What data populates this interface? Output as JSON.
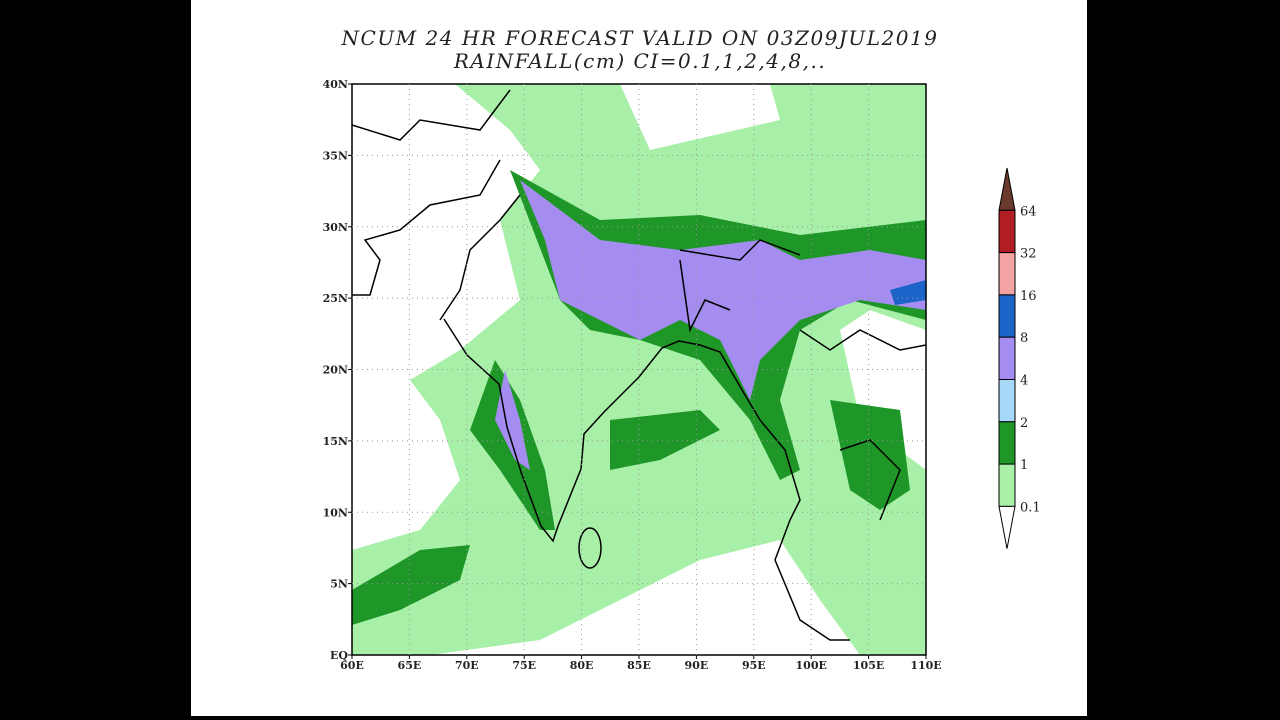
{
  "header": {
    "title": "NCUM 24 HR FORECAST VALID ON 03Z09JUL2019",
    "subtitle": "RAINFALL(cm) CI=0.1,1,2,4,8,.."
  },
  "map": {
    "lat_labels": [
      "40N",
      "35N",
      "30N",
      "25N",
      "20N",
      "15N",
      "10N",
      "5N",
      "EQ"
    ],
    "lon_labels": [
      "60E",
      "65E",
      "70E",
      "75E",
      "80E",
      "85E",
      "90E",
      "95E",
      "100E",
      "105E",
      "110E"
    ]
  },
  "colorbar": {
    "levels": [
      64,
      32,
      16,
      8,
      4,
      2,
      1,
      0.1
    ],
    "colors": [
      "#6b3a2e",
      "#b01e24",
      "#f4a3a3",
      "#1c64c8",
      "#a48cf0",
      "#a8d8f8",
      "#1e9628",
      "#a8f0a8",
      "#ffffff"
    ]
  }
}
